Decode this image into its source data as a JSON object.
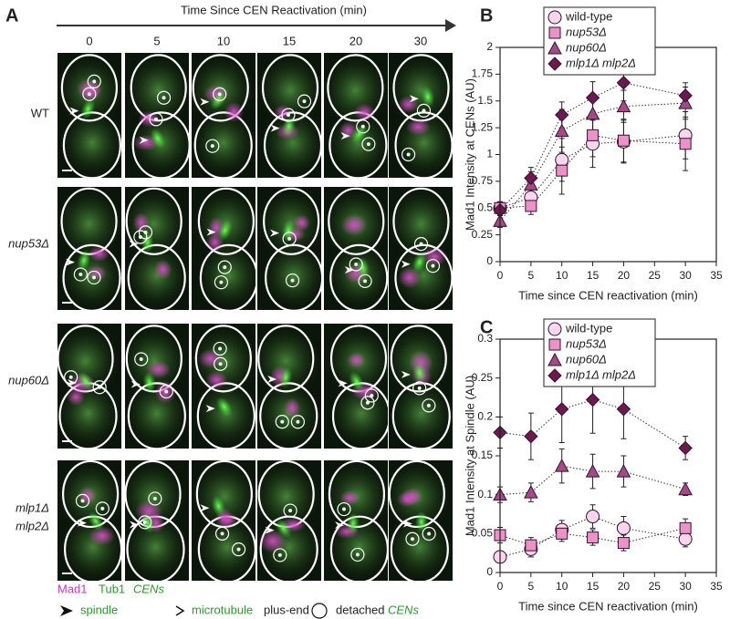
{
  "panel_a": {
    "label": "A",
    "header": "Time Since CEN Reactivation (min)",
    "columns": [
      "0",
      "5",
      "10",
      "15",
      "20",
      "30"
    ],
    "rows": [
      "WT",
      "nup53Δ",
      "nup60Δ",
      "mlp1Δ",
      "mlp2Δ"
    ],
    "legend": {
      "mad1": "Mad1",
      "tub1": "Tub1",
      "cens": "CENs",
      "spindle": "spindle",
      "microtubule": "microtubule",
      "plus_end": "plus-end",
      "detached": "detached",
      "detached_cens": "CENs"
    }
  },
  "chart_data": [
    {
      "type": "line",
      "label": "B",
      "x_label": "Time since CEN reactivation (min)",
      "y_label": "Mad1 Intensity at CENs (AU)",
      "x": [
        0,
        5,
        10,
        15,
        20,
        30
      ],
      "xlim": [
        0,
        35
      ],
      "xticks": [
        0,
        5,
        10,
        15,
        20,
        25,
        30,
        35
      ],
      "ylim": [
        0,
        2
      ],
      "yticks": [
        0,
        0.25,
        0.5,
        0.75,
        1,
        1.25,
        1.5,
        1.75,
        2
      ],
      "legend": "upper left",
      "line_style": "dotted",
      "series": [
        {
          "name": "wild-type",
          "color": "#f8d6ee",
          "marker": "circle",
          "values": [
            0.5,
            0.6,
            0.95,
            1.1,
            1.12,
            1.18
          ],
          "errors": [
            0.06,
            0.1,
            0.2,
            0.22,
            0.2,
            0.22
          ]
        },
        {
          "name": "nup53Δ",
          "color": "#eb93c9",
          "marker": "square",
          "values": [
            0.5,
            0.52,
            0.85,
            1.18,
            1.13,
            1.1
          ],
          "errors": [
            0.05,
            0.08,
            0.22,
            0.2,
            0.2,
            0.25
          ]
        },
        {
          "name": "nup60Δ",
          "color": "#a24b86",
          "marker": "triangle",
          "values": [
            0.38,
            0.72,
            1.22,
            1.38,
            1.45,
            1.48
          ],
          "errors": [
            0.06,
            0.12,
            0.2,
            0.18,
            0.15,
            0.15
          ]
        },
        {
          "name": "mlp1Δ mlp2Δ",
          "color": "#6a1a4e",
          "marker": "diamond",
          "values": [
            0.48,
            0.78,
            1.37,
            1.53,
            1.67,
            1.55
          ],
          "errors": [
            0.05,
            0.1,
            0.12,
            0.15,
            0.17,
            0.12
          ]
        }
      ]
    },
    {
      "type": "line",
      "label": "C",
      "x_label": "Time since CEN reactivation (min)",
      "y_label": "Mad1 Intensity at Spindle (AU)",
      "x": [
        0,
        5,
        10,
        15,
        20,
        30
      ],
      "xlim": [
        0,
        35
      ],
      "xticks": [
        0,
        5,
        10,
        15,
        20,
        25,
        30,
        35
      ],
      "ylim": [
        0,
        0.3
      ],
      "yticks": [
        0,
        0.05,
        0.1,
        0.15,
        0.2,
        0.25,
        0.3
      ],
      "legend": "upper left",
      "line_style": "dotted",
      "series": [
        {
          "name": "wild-type",
          "color": "#f8d6ee",
          "marker": "circle",
          "values": [
            0.02,
            0.03,
            0.055,
            0.072,
            0.057,
            0.043
          ],
          "errors": [
            0.005,
            0.01,
            0.012,
            0.015,
            0.015,
            0.01
          ]
        },
        {
          "name": "nup53Δ",
          "color": "#eb93c9",
          "marker": "square",
          "values": [
            0.048,
            0.035,
            0.05,
            0.045,
            0.038,
            0.057
          ],
          "errors": [
            0.01,
            0.01,
            0.01,
            0.01,
            0.01,
            0.012
          ]
        },
        {
          "name": "nup60Δ",
          "color": "#a24b86",
          "marker": "triangle",
          "values": [
            0.1,
            0.103,
            0.137,
            0.13,
            0.13,
            0.107
          ],
          "errors": [
            0.01,
            0.012,
            0.022,
            0.022,
            0.02,
            0.008
          ]
        },
        {
          "name": "mlp1Δ mlp2Δ",
          "color": "#6a1a4e",
          "marker": "diamond",
          "values": [
            0.18,
            0.175,
            0.21,
            0.222,
            0.21,
            0.16
          ],
          "errors": [
            0.02,
            0.03,
            0.043,
            0.043,
            0.038,
            0.015
          ]
        }
      ]
    }
  ]
}
